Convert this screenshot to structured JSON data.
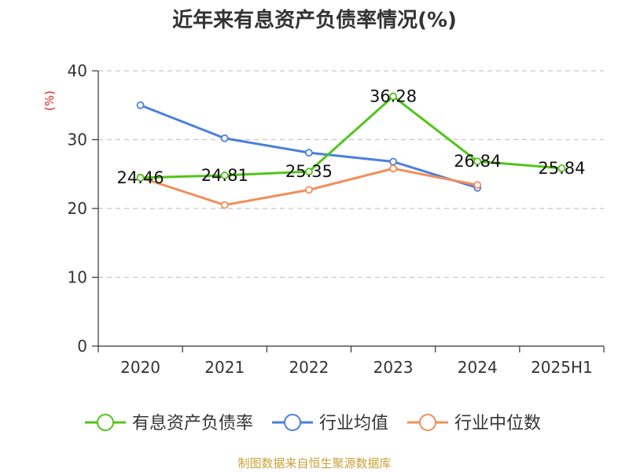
{
  "chart_data": {
    "type": "line",
    "title": "近年来有息资产负债率情况(%)",
    "ylabel": "(%)",
    "xlabel": "",
    "categories": [
      "2020",
      "2021",
      "2022",
      "2023",
      "2024",
      "2025H1"
    ],
    "ylim": [
      0,
      40
    ],
    "yticks": [
      0,
      10,
      20,
      30,
      40
    ],
    "grid": true,
    "legend_position": "bottom",
    "series": [
      {
        "name": "有息资产负债率",
        "color": "#52c41a",
        "values": [
          24.46,
          24.81,
          25.35,
          36.28,
          26.84,
          25.84
        ],
        "labels": [
          "24.46",
          "24.81",
          "25.35",
          "36.28",
          "26.84",
          "25.84"
        ]
      },
      {
        "name": "行业均值",
        "color": "#4a7fdc",
        "values": [
          35.0,
          30.2,
          28.1,
          26.8,
          23.0,
          null
        ]
      },
      {
        "name": "行业中位数",
        "color": "#f28e5b",
        "values": [
          24.5,
          20.5,
          22.7,
          25.8,
          23.4,
          null
        ]
      }
    ],
    "source": "制图数据来自恒生聚源数据库"
  }
}
